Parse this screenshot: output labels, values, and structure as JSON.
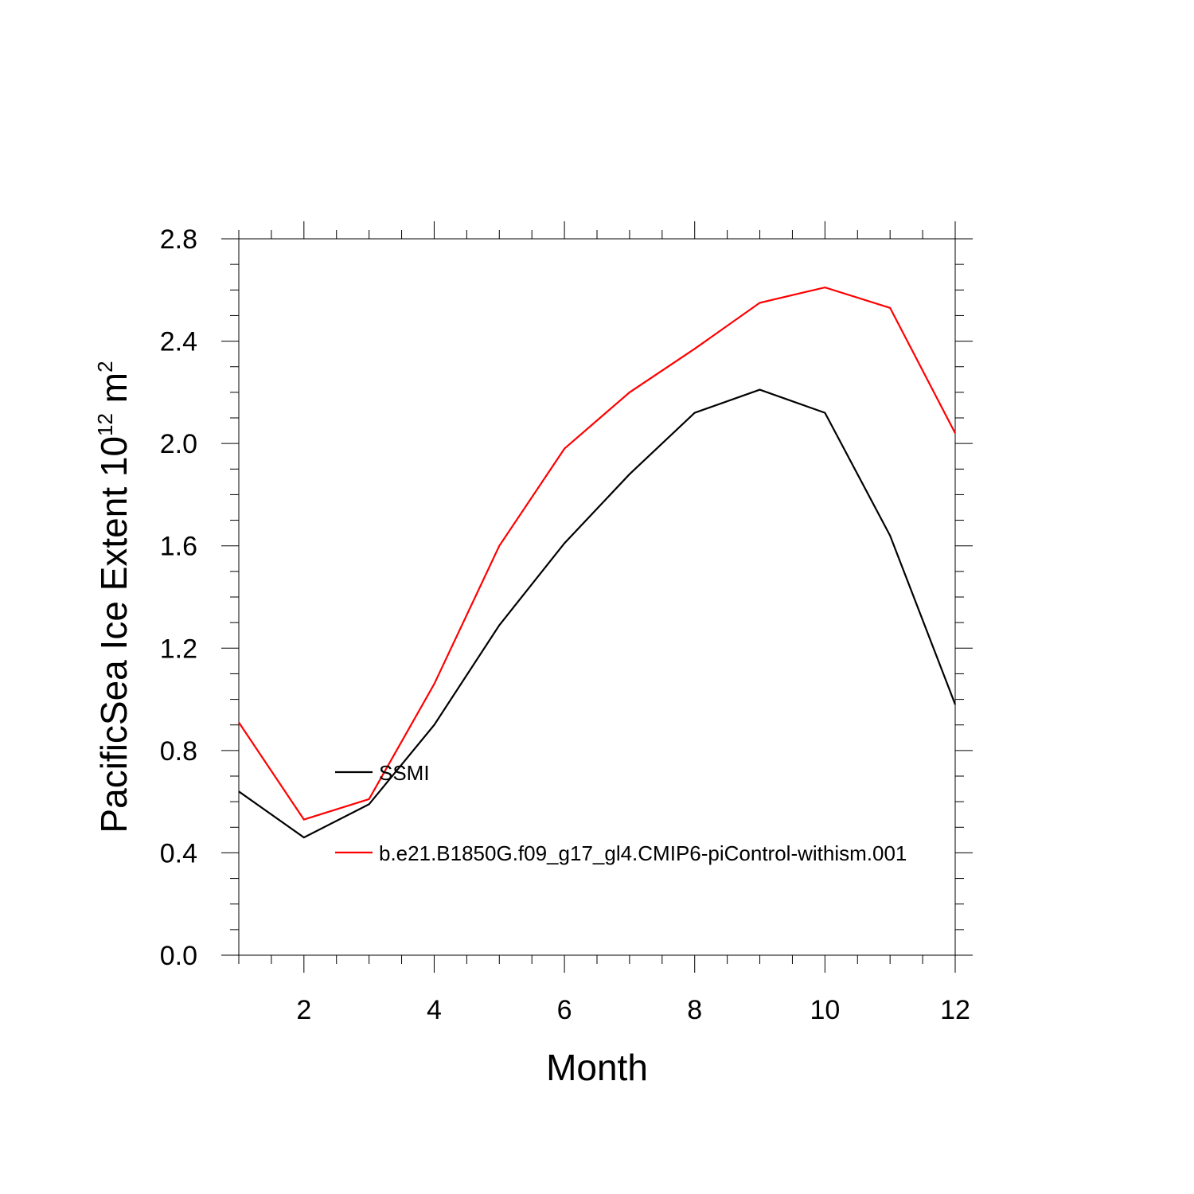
{
  "chart_data": {
    "type": "line",
    "title": "",
    "xlabel": "Month",
    "ylabel": {
      "prefix": "PacificSea Ice Extent 10",
      "exponent": "12",
      "unit": " m",
      "unit_exponent": "2"
    },
    "xlim": [
      1,
      12
    ],
    "ylim": [
      0,
      2.8
    ],
    "x_ticks": [
      2,
      4,
      6,
      8,
      10,
      12
    ],
    "x_tick_labels": [
      "2",
      "4",
      "6",
      "8",
      "10",
      "12"
    ],
    "y_ticks": [
      0,
      0.4,
      0.8,
      1.2,
      1.6,
      2.0,
      2.4,
      2.8
    ],
    "y_tick_labels": [
      "0.0",
      "0.4",
      "0.8",
      "1.2",
      "1.6",
      "2.0",
      "2.4",
      "2.8"
    ],
    "grid": false,
    "legend_position": "inside-lower-left",
    "x": [
      1,
      2,
      3,
      4,
      5,
      6,
      7,
      8,
      9,
      10,
      11,
      12
    ],
    "series": [
      {
        "name": "SSMI",
        "color": "#000000",
        "values": [
          0.64,
          0.46,
          0.59,
          0.9,
          1.29,
          1.61,
          1.88,
          2.12,
          2.21,
          2.12,
          1.64,
          0.98
        ]
      },
      {
        "name": "b.e21.B1850G.f09_g17_gl4.CMIP6-piControl-withism.001",
        "color": "#ff0000",
        "values": [
          0.91,
          0.53,
          0.61,
          1.06,
          1.6,
          1.98,
          2.2,
          2.37,
          2.55,
          2.61,
          2.53,
          2.04
        ]
      }
    ]
  }
}
